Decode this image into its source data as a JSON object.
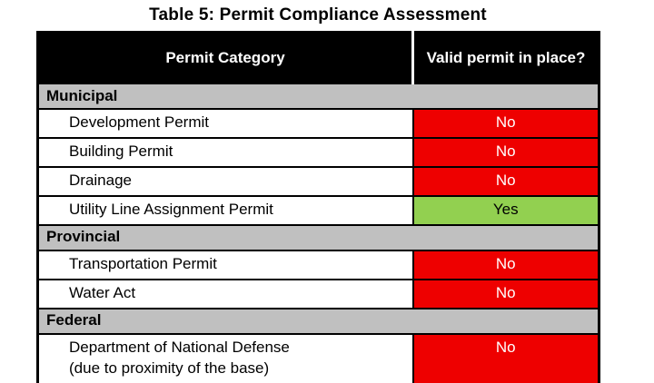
{
  "title": "Table 5: Permit Compliance Assessment",
  "table": {
    "columns": [
      "Permit Category",
      "Valid permit in place?"
    ],
    "sections": [
      {
        "label": "Municipal",
        "rows": [
          {
            "category": "Development Permit",
            "status": "No"
          },
          {
            "category": "Building Permit",
            "status": "No"
          },
          {
            "category": "Drainage",
            "status": "No"
          },
          {
            "category": "Utility Line Assignment Permit",
            "status": "Yes"
          }
        ]
      },
      {
        "label": "Provincial",
        "rows": [
          {
            "category": "Transportation Permit",
            "status": "No"
          },
          {
            "category": "Water Act",
            "status": "No"
          }
        ]
      },
      {
        "label": "Federal",
        "rows": [
          {
            "category": "Department of National Defense\n(due to proximity of the base)",
            "status": "No"
          }
        ]
      }
    ]
  },
  "colors": {
    "header_bg": "#000000",
    "header_text": "#ffffff",
    "section_bg": "#c0c0c0",
    "status_no_bg": "#ee0000",
    "status_no_text": "#ffffff",
    "status_yes_bg": "#92d050",
    "status_yes_text": "#000000"
  }
}
